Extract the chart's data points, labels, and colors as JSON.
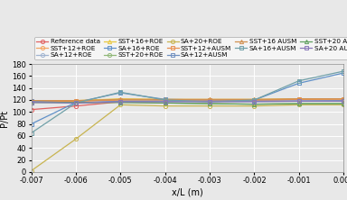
{
  "title": "",
  "xlabel": "x/L (m)",
  "ylabel": "P/Pt",
  "xlim": [
    -0.007,
    0.0
  ],
  "ylim": [
    0,
    180
  ],
  "xticks": [
    -0.007,
    -0.006,
    -0.005,
    -0.004,
    -0.003,
    -0.002,
    -0.001,
    0
  ],
  "yticks": [
    0,
    20,
    40,
    60,
    80,
    100,
    120,
    140,
    160,
    180
  ],
  "series": [
    {
      "label": "Reference data",
      "color": "#e06060",
      "marker": "o",
      "markersize": 3,
      "linewidth": 0.9,
      "linestyle": "-",
      "x": [
        -0.007,
        -0.006,
        -0.005,
        -0.004,
        -0.003,
        -0.002,
        -0.001,
        0.0
      ],
      "y": [
        104,
        110,
        117,
        118,
        118,
        119,
        120,
        120
      ]
    },
    {
      "label": "SST+12+ROE",
      "color": "#f4a460",
      "marker": "o",
      "markersize": 3,
      "linewidth": 0.9,
      "linestyle": "-",
      "x": [
        -0.007,
        -0.006,
        -0.005,
        -0.004,
        -0.003,
        -0.002,
        -0.001,
        0.0
      ],
      "y": [
        118,
        118,
        120,
        120,
        120,
        120,
        121,
        122
      ]
    },
    {
      "label": "SA+12+ROE",
      "color": "#a0b4d0",
      "marker": "o",
      "markersize": 3,
      "linewidth": 0.9,
      "linestyle": "-",
      "x": [
        -0.007,
        -0.006,
        -0.005,
        -0.004,
        -0.003,
        -0.002,
        -0.001,
        0.0
      ],
      "y": [
        118,
        116,
        118,
        118,
        118,
        118,
        119,
        119
      ]
    },
    {
      "label": "SST+16+ROE",
      "color": "#e8c840",
      "marker": "^",
      "markersize": 3,
      "linewidth": 0.9,
      "linestyle": "-",
      "x": [
        -0.007,
        -0.006,
        -0.005,
        -0.004,
        -0.003,
        -0.002,
        -0.001,
        0.0
      ],
      "y": [
        119,
        119,
        122,
        121,
        121,
        121,
        122,
        122
      ]
    },
    {
      "label": "SA+16+ROE",
      "color": "#6090c8",
      "marker": "s",
      "markersize": 3,
      "linewidth": 0.9,
      "linestyle": "-",
      "x": [
        -0.007,
        -0.006,
        -0.005,
        -0.004,
        -0.003,
        -0.002,
        -0.001,
        0.0
      ],
      "y": [
        80,
        116,
        132,
        121,
        120,
        120,
        148,
        165
      ]
    },
    {
      "label": "SST+20+ROE",
      "color": "#90b878",
      "marker": "o",
      "markersize": 3,
      "linewidth": 0.9,
      "linestyle": "-",
      "x": [
        -0.007,
        -0.006,
        -0.005,
        -0.004,
        -0.003,
        -0.002,
        -0.001,
        0.0
      ],
      "y": [
        116,
        116,
        116,
        115,
        114,
        113,
        114,
        114
      ]
    },
    {
      "label": "SA+20+ROE",
      "color": "#c8b450",
      "marker": "o",
      "markersize": 3,
      "linewidth": 0.9,
      "linestyle": "-",
      "x": [
        -0.007,
        -0.006,
        -0.005,
        -0.004,
        -0.003,
        -0.002,
        -0.001,
        0.0
      ],
      "y": [
        2,
        55,
        112,
        110,
        110,
        110,
        112,
        112
      ]
    },
    {
      "label": "SST+12+AUSM",
      "color": "#e89050",
      "marker": "s",
      "markersize": 3,
      "linewidth": 0.9,
      "linestyle": "-",
      "x": [
        -0.007,
        -0.006,
        -0.005,
        -0.004,
        -0.003,
        -0.002,
        -0.001,
        0.0
      ],
      "y": [
        118,
        118,
        120,
        120,
        120,
        120,
        121,
        122
      ]
    },
    {
      "label": "SA+12+AUSM",
      "color": "#7090c0",
      "marker": "s",
      "markersize": 3,
      "linewidth": 0.9,
      "linestyle": "-",
      "x": [
        -0.007,
        -0.006,
        -0.005,
        -0.004,
        -0.003,
        -0.002,
        -0.001,
        0.0
      ],
      "y": [
        118,
        115,
        118,
        118,
        118,
        118,
        118,
        119
      ]
    },
    {
      "label": "SST+16 AUSM",
      "color": "#d09050",
      "marker": "^",
      "markersize": 3,
      "linewidth": 0.9,
      "linestyle": "-",
      "x": [
        -0.007,
        -0.006,
        -0.005,
        -0.004,
        -0.003,
        -0.002,
        -0.001,
        0.0
      ],
      "y": [
        119,
        119,
        121,
        121,
        121,
        121,
        122,
        122
      ]
    },
    {
      "label": "SA+16+AUSM",
      "color": "#70a0a8",
      "marker": "s",
      "markersize": 3,
      "linewidth": 0.9,
      "linestyle": "-",
      "x": [
        -0.007,
        -0.006,
        -0.005,
        -0.004,
        -0.003,
        -0.002,
        -0.001,
        0.0
      ],
      "y": [
        65,
        115,
        133,
        120,
        117,
        120,
        152,
        168
      ]
    },
    {
      "label": "SST+20 AUSM",
      "color": "#60a060",
      "marker": "^",
      "markersize": 3,
      "linewidth": 0.9,
      "linestyle": "-",
      "x": [
        -0.007,
        -0.006,
        -0.005,
        -0.004,
        -0.003,
        -0.002,
        -0.001,
        0.0
      ],
      "y": [
        116,
        116,
        116,
        115,
        114,
        113,
        114,
        114
      ]
    },
    {
      "label": "SA+20 AUSM",
      "color": "#8878b8",
      "marker": "s",
      "markersize": 3,
      "linewidth": 0.9,
      "linestyle": "-",
      "x": [
        -0.007,
        -0.006,
        -0.005,
        -0.004,
        -0.003,
        -0.002,
        -0.001,
        0.0
      ],
      "y": [
        116,
        115,
        117,
        117,
        117,
        117,
        118,
        118
      ]
    }
  ],
  "legend_ncol": 5,
  "legend_fontsize": 5.2,
  "axis_fontsize": 7,
  "tick_fontsize": 6,
  "background_color": "#e8e8e8",
  "grid_color": "#ffffff",
  "grid_linewidth": 0.7
}
